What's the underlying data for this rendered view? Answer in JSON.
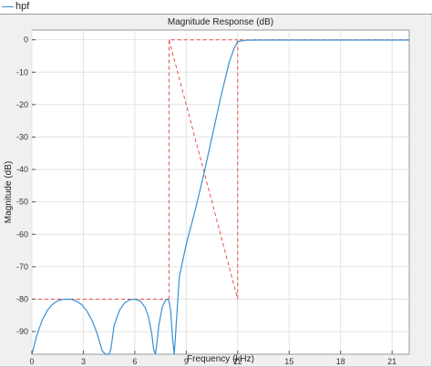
{
  "legend": {
    "label": "hpf"
  },
  "chart_data": {
    "type": "line",
    "title": "Magnitude Response (dB)",
    "xlabel": "Frequency (kHz)",
    "ylabel": "Magnitude (dB)",
    "xlim": [
      0,
      22
    ],
    "ylim": [
      -97,
      3
    ],
    "xticks": [
      0,
      3,
      6,
      9,
      12,
      15,
      18,
      21
    ],
    "yticks": [
      0,
      -10,
      -20,
      -30,
      -40,
      -50,
      -60,
      -70,
      -80,
      -90
    ],
    "grid": true,
    "colors": {
      "series": "#3a8fd0",
      "mask": "#e8514c",
      "grid": "#e4e4e4"
    },
    "series": [
      {
        "name": "hpf",
        "x": [
          0.0,
          0.3,
          0.6,
          0.9,
          1.2,
          1.5,
          1.8,
          2.1,
          2.3,
          2.6,
          2.9,
          3.2,
          3.5,
          3.8,
          4.1,
          4.3,
          4.4,
          4.5,
          4.6,
          4.8,
          5.1,
          5.4,
          5.7,
          6.0,
          6.3,
          6.6,
          6.8,
          7.0,
          7.1,
          7.2,
          7.3,
          7.4,
          7.6,
          7.8,
          7.9,
          8.0,
          8.1,
          8.2,
          8.3,
          8.6,
          9.0,
          9.5,
          10.0,
          10.5,
          11.0,
          11.5,
          11.8,
          12.0,
          12.5,
          13,
          14,
          15,
          16,
          17,
          18,
          19,
          20,
          21,
          22
        ],
        "y": [
          -97,
          -91,
          -86.5,
          -83.5,
          -81.6,
          -80.5,
          -80.1,
          -80.0,
          -80.1,
          -80.6,
          -81.7,
          -83.6,
          -86.5,
          -90.5,
          -96,
          -97,
          -97,
          -97,
          -95.5,
          -88,
          -83.5,
          -81.2,
          -80.2,
          -80.0,
          -80.5,
          -82.5,
          -85.5,
          -91,
          -95.5,
          -97,
          -93,
          -88,
          -82.5,
          -80.2,
          -80.0,
          -80.6,
          -84,
          -92,
          -97,
          -73,
          -63,
          -53,
          -42,
          -30,
          -18,
          -7,
          -2.5,
          -0.5,
          -0.15,
          -0.1,
          -0.1,
          -0.1,
          -0.1,
          -0.1,
          -0.1,
          -0.1,
          -0.1,
          -0.1,
          -0.1
        ]
      },
      {
        "name": "",
        "x": [
          0,
          8,
          8,
          12,
          12,
          22
        ],
        "y": [
          -80,
          -80,
          0,
          -80,
          0,
          0
        ],
        "style": "dashed"
      }
    ]
  }
}
